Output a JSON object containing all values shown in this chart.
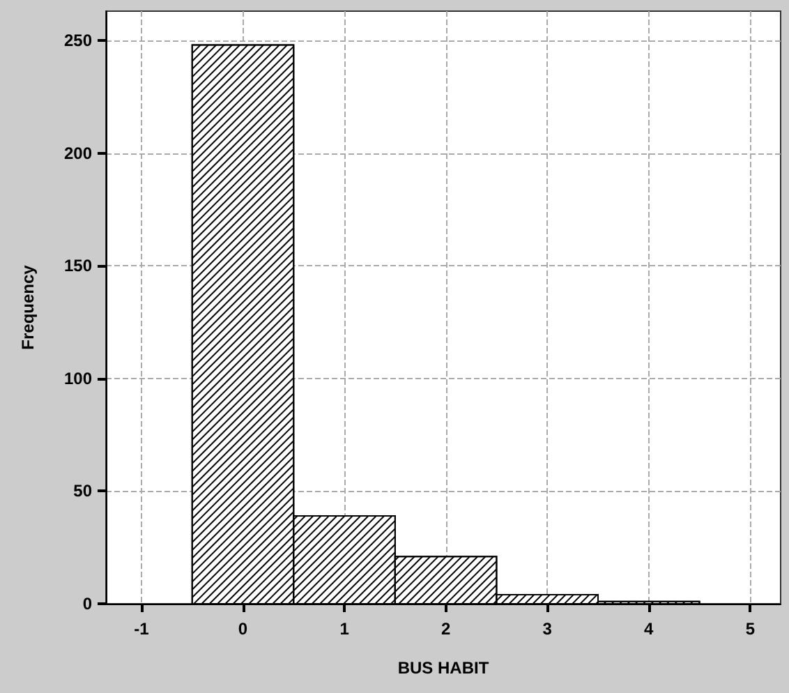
{
  "chart_data": {
    "type": "histogram",
    "xlabel": "BUS HABIT",
    "ylabel": "Frequency",
    "bins": [
      -0.5,
      0.5,
      1.5,
      2.5,
      3.5,
      4.5
    ],
    "values": [
      248,
      39,
      21,
      4,
      1
    ],
    "color": "#ffffff",
    "xlim": [
      -1.35,
      5.3
    ],
    "xticks": [
      -1,
      0,
      1,
      2,
      3,
      4,
      5
    ],
    "ylim": [
      0,
      263
    ],
    "yticks": [
      0,
      50,
      100,
      150,
      200,
      250
    ],
    "grid": true
  }
}
